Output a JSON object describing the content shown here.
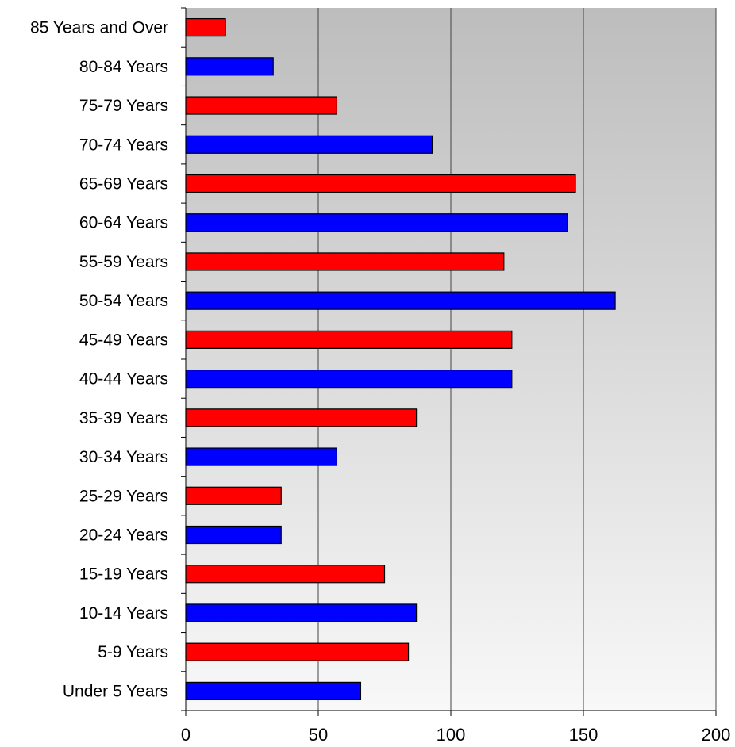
{
  "chart_data": {
    "type": "bar",
    "orientation": "horizontal",
    "categories": [
      "Under 5 Years",
      "5-9 Years",
      "10-14 Years",
      "15-19 Years",
      "20-24 Years",
      "25-29 Years",
      "30-34 Years",
      "35-39 Years",
      "40-44 Years",
      "45-49 Years",
      "50-54 Years",
      "55-59 Years",
      "60-64 Years",
      "65-69 Years",
      "70-74 Years",
      "75-79 Years",
      "80-84 Years",
      "85 Years and Over"
    ],
    "values": [
      66,
      84,
      87,
      75,
      36,
      36,
      57,
      87,
      123,
      123,
      162,
      120,
      144,
      147,
      93,
      57,
      33,
      15
    ],
    "bar_colors": [
      "#0000ff",
      "#ff0000"
    ],
    "xlim": [
      0,
      200
    ],
    "x_ticks": [
      0,
      50,
      100,
      150,
      200
    ],
    "grid": "vertical",
    "legend": "none",
    "title": "",
    "xlabel": "",
    "ylabel": "",
    "plot_background": "gradient #bfbfbf to #f8f8f8"
  }
}
